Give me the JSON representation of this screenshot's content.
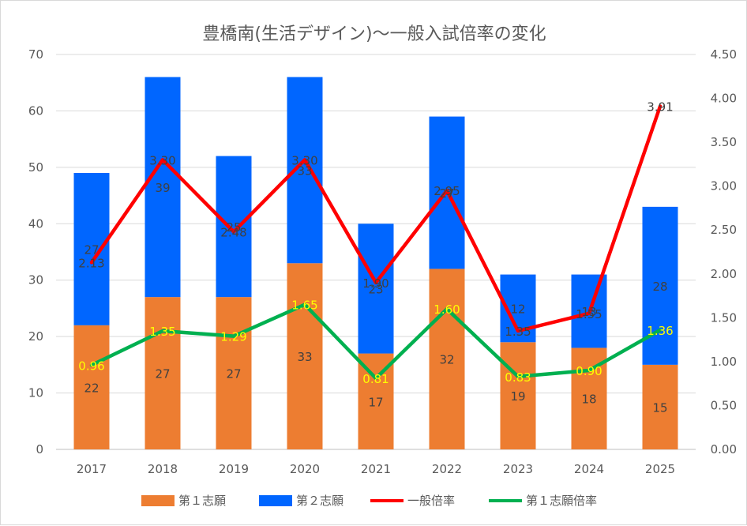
{
  "chart_data": {
    "type": "bar",
    "subtype": "stacked-bar-with-lines-secondary-axis",
    "title": "豊橋南(生活デザイン)～一般入試倍率の変化",
    "categories": [
      "2017",
      "2018",
      "2019",
      "2020",
      "2021",
      "2022",
      "2023",
      "2024",
      "2025"
    ],
    "y_left": {
      "min": 0,
      "max": 70,
      "ticks": [
        "0",
        "10",
        "20",
        "30",
        "40",
        "50",
        "60",
        "70"
      ]
    },
    "y_right": {
      "min": 0,
      "max": 4.5,
      "ticks": [
        "0.00",
        "0.50",
        "1.00",
        "1.50",
        "2.00",
        "2.50",
        "3.00",
        "3.50",
        "4.00",
        "4.50"
      ]
    },
    "grid": true,
    "legend_position": "bottom",
    "series": [
      {
        "name": "第１志願",
        "kind": "bar",
        "axis": "left",
        "color": "#ed7d31",
        "values": [
          22,
          27,
          27,
          33,
          17,
          32,
          19,
          18,
          15
        ],
        "labels": [
          "22",
          "27",
          "27",
          "33",
          "17",
          "32",
          "19",
          "18",
          "15"
        ]
      },
      {
        "name": "第２志願",
        "kind": "bar",
        "axis": "left",
        "color": "#0066ff",
        "values": [
          27,
          39,
          25,
          33,
          23,
          27,
          12,
          13,
          28
        ],
        "labels": [
          "27",
          "39",
          "25",
          "33",
          "23",
          "27",
          "12",
          "13",
          "28"
        ]
      },
      {
        "name": "一般倍率",
        "kind": "line",
        "axis": "right",
        "color": "#ff0000",
        "values": [
          2.13,
          3.3,
          2.48,
          3.3,
          1.9,
          2.95,
          1.35,
          1.55,
          3.91
        ],
        "labels": [
          "2.13",
          "3.30",
          "2.48",
          "3.30",
          "1.90",
          "2.95",
          "1.35",
          "1.55",
          "3.91"
        ],
        "label_color": "#404040"
      },
      {
        "name": "第１志願倍率",
        "kind": "line",
        "axis": "right",
        "color": "#00b050",
        "values": [
          0.96,
          1.35,
          1.29,
          1.65,
          0.81,
          1.6,
          0.83,
          0.9,
          1.36
        ],
        "labels": [
          "0.96",
          "1.35",
          "1.29",
          "1.65",
          "0.81",
          "1.60",
          "0.83",
          "0.90",
          "1.36"
        ],
        "label_color": "#ffff00"
      }
    ]
  }
}
